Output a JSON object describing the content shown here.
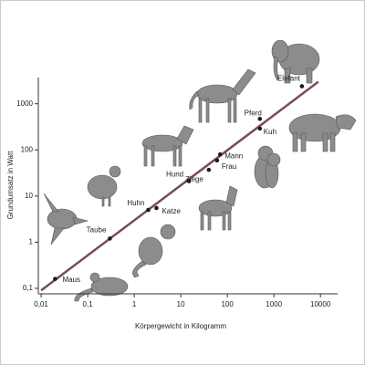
{
  "chart_data": {
    "type": "scatter",
    "log_scale": true,
    "x_label": "Körpergewicht in Kilogramm",
    "y_label": "Grundumsatz in Watt",
    "xlim": [
      0.0087,
      23400
    ],
    "ylim": [
      0.076,
      3700
    ],
    "xticks": [
      {
        "value": 0.01,
        "label": "0,01"
      },
      {
        "value": 0.1,
        "label": "0,1"
      },
      1,
      10,
      100,
      1000,
      10000
    ],
    "yticks": [
      {
        "value": 0.1,
        "label": "0,1"
      },
      1,
      10,
      100,
      1000
    ],
    "color": "#1a1a1a",
    "points": [
      {
        "label": "Maus",
        "x": 0.02,
        "y": 0.16
      },
      {
        "label": "Taube",
        "x": 0.3,
        "y": 1.2
      },
      {
        "label": "Huhn",
        "x": 2,
        "y": 5
      },
      {
        "label": "Katze",
        "x": 3,
        "y": 5.5
      },
      {
        "label": "Hund",
        "x": 15,
        "y": 21
      },
      {
        "label": "Ziege",
        "x": 40,
        "y": 37
      },
      {
        "label": "Frau",
        "x": 60,
        "y": 59
      },
      {
        "label": "Mann",
        "x": 70,
        "y": 80
      },
      {
        "label": "Kuh",
        "x": 500,
        "y": 290
      },
      {
        "label": "Pferd",
        "x": 500,
        "y": 470
      },
      {
        "label": "Elefant",
        "x": 4000,
        "y": 2400
      }
    ],
    "trend": {
      "x": [
        0.01,
        9000
      ],
      "y": [
        0.09,
        3000
      ],
      "color": "#7a4a63"
    }
  }
}
